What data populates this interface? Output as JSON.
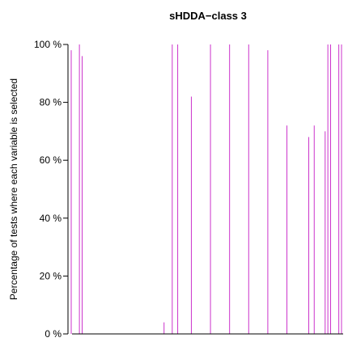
{
  "chart_data": {
    "type": "bar",
    "title": "sHDDA−class 3",
    "xlabel": "",
    "ylabel": "Percentage of tests where each variable is selected",
    "ylim": [
      0,
      100
    ],
    "yticks": [
      0,
      20,
      40,
      60,
      80,
      100
    ],
    "ytick_labels": [
      "0 %",
      "20 %",
      "40 %",
      "60 %",
      "80 %",
      "100 %"
    ],
    "grid": false,
    "bar_color": "#cc33cc",
    "x_count": 100,
    "series": [
      {
        "x": [
          1,
          4,
          5,
          35,
          38,
          40,
          45,
          52,
          59,
          66,
          73,
          80,
          88,
          90,
          94,
          95,
          96,
          99,
          100
        ],
        "values": [
          98,
          100,
          96,
          4,
          100,
          100,
          82,
          100,
          100,
          100,
          98,
          72,
          68,
          72,
          70,
          100,
          100,
          100,
          100
        ]
      }
    ]
  }
}
